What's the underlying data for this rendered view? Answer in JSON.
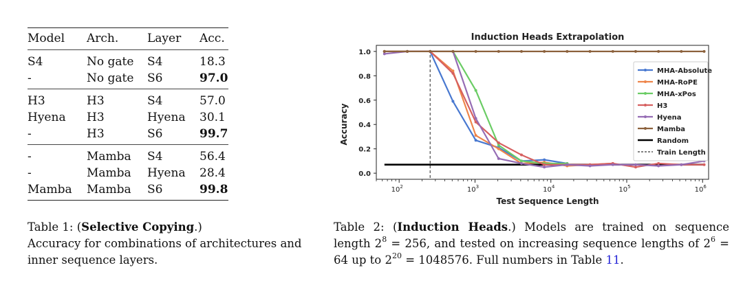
{
  "table1": {
    "headers": [
      "Model",
      "Arch.",
      "Layer",
      "Acc."
    ],
    "groups": [
      [
        {
          "model": "S4",
          "arch": "No gate",
          "layer": "S4",
          "acc": "18.3",
          "bold": false
        },
        {
          "model": "-",
          "arch": "No gate",
          "layer": "S6",
          "acc": "97.0",
          "bold": true
        }
      ],
      [
        {
          "model": "H3",
          "arch": "H3",
          "layer": "S4",
          "acc": "57.0",
          "bold": false
        },
        {
          "model": "Hyena",
          "arch": "H3",
          "layer": "Hyena",
          "acc": "30.1",
          "bold": false
        },
        {
          "model": "-",
          "arch": "H3",
          "layer": "S6",
          "acc": "99.7",
          "bold": true
        }
      ],
      [
        {
          "model": "-",
          "arch": "Mamba",
          "layer": "S4",
          "acc": "56.4",
          "bold": false
        },
        {
          "model": "-",
          "arch": "Mamba",
          "layer": "Hyena",
          "acc": "28.4",
          "bold": false
        },
        {
          "model": "Mamba",
          "arch": "Mamba",
          "layer": "S6",
          "acc": "99.8",
          "bold": true
        }
      ]
    ]
  },
  "caption1": {
    "prefix": "Table 1: (",
    "strong": "Selective Copying",
    "suffix": ".)",
    "body": "Accuracy for combinations of architectures and inner sequence layers."
  },
  "caption2": {
    "prefix": "Table 2: (",
    "strong": "Induction Heads",
    "mid": ".) Models are trained on sequence length 2",
    "exp1": "8",
    "mid2": " = 256, and tested on increasing sequence lengths of 2",
    "exp2": "6",
    "mid3": " = 64 up to 2",
    "exp3": "20",
    "mid4": " = 1048576. Full numbers in Table ",
    "link": "11",
    "end": "."
  },
  "chart_data": {
    "type": "line",
    "title": "Induction Heads Extrapolation",
    "xlabel": "Test Sequence Length",
    "ylabel": "Accuracy",
    "xscale": "log",
    "xlim": [
      50,
      1200000
    ],
    "ylim": [
      -0.05,
      1.05
    ],
    "yticks": [
      0.0,
      0.2,
      0.4,
      0.6,
      0.8,
      1.0
    ],
    "ytick_labels": [
      "0.0",
      "0.2",
      "0.4",
      "0.6",
      "0.8",
      "1.0"
    ],
    "xtick_labels": [
      {
        "base": "10",
        "exp": "2",
        "value": 100
      },
      {
        "base": "10",
        "exp": "3",
        "value": 1000
      },
      {
        "base": "10",
        "exp": "4",
        "value": 10000
      },
      {
        "base": "10",
        "exp": "5",
        "value": 100000
      },
      {
        "base": "10",
        "exp": "6",
        "value": 1000000
      }
    ],
    "x": [
      64,
      128,
      256,
      512,
      1024,
      2048,
      4096,
      8192,
      16384,
      32768,
      65536,
      131072,
      262144,
      524288,
      1048576
    ],
    "grid": false,
    "legend_position": "right",
    "train_length": 256,
    "random_baseline": 0.07,
    "series": [
      {
        "name": "MHA-Absolute",
        "color": "#4878d0",
        "values": [
          1.0,
          1.0,
          1.0,
          0.59,
          0.27,
          0.21,
          0.1,
          0.11,
          0.08,
          null,
          null,
          null,
          null,
          null,
          null
        ]
      },
      {
        "name": "MHA-RoPE",
        "color": "#ee854a",
        "values": [
          1.0,
          1.0,
          1.0,
          0.84,
          0.31,
          0.2,
          0.08,
          0.09,
          0.06,
          0.07,
          0.08,
          null,
          null,
          null,
          null
        ]
      },
      {
        "name": "MHA-xPos",
        "color": "#6acc64",
        "values": [
          1.0,
          1.0,
          1.0,
          1.0,
          0.68,
          0.23,
          0.1,
          0.08,
          0.08,
          null,
          null,
          null,
          null,
          null,
          null
        ]
      },
      {
        "name": "H3",
        "color": "#d65f5f",
        "values": [
          1.0,
          1.0,
          1.0,
          0.82,
          0.42,
          0.25,
          0.15,
          0.07,
          0.07,
          0.07,
          0.08,
          0.05,
          0.08,
          0.07,
          0.07
        ]
      },
      {
        "name": "Hyena",
        "color": "#956cb4",
        "values": [
          0.98,
          1.0,
          1.0,
          1.0,
          0.45,
          0.12,
          0.08,
          0.05,
          0.07,
          0.06,
          0.07,
          0.07,
          0.06,
          0.07,
          0.1
        ]
      },
      {
        "name": "Mamba",
        "color": "#8c613c",
        "values": [
          1.0,
          1.0,
          1.0,
          1.0,
          1.0,
          1.0,
          1.0,
          1.0,
          1.0,
          1.0,
          1.0,
          1.0,
          1.0,
          1.0,
          1.0
        ]
      }
    ],
    "legend_extra": [
      {
        "name": "Random",
        "style": "solid-black-thick"
      },
      {
        "name": "Train Length",
        "style": "dashed-black"
      }
    ]
  }
}
